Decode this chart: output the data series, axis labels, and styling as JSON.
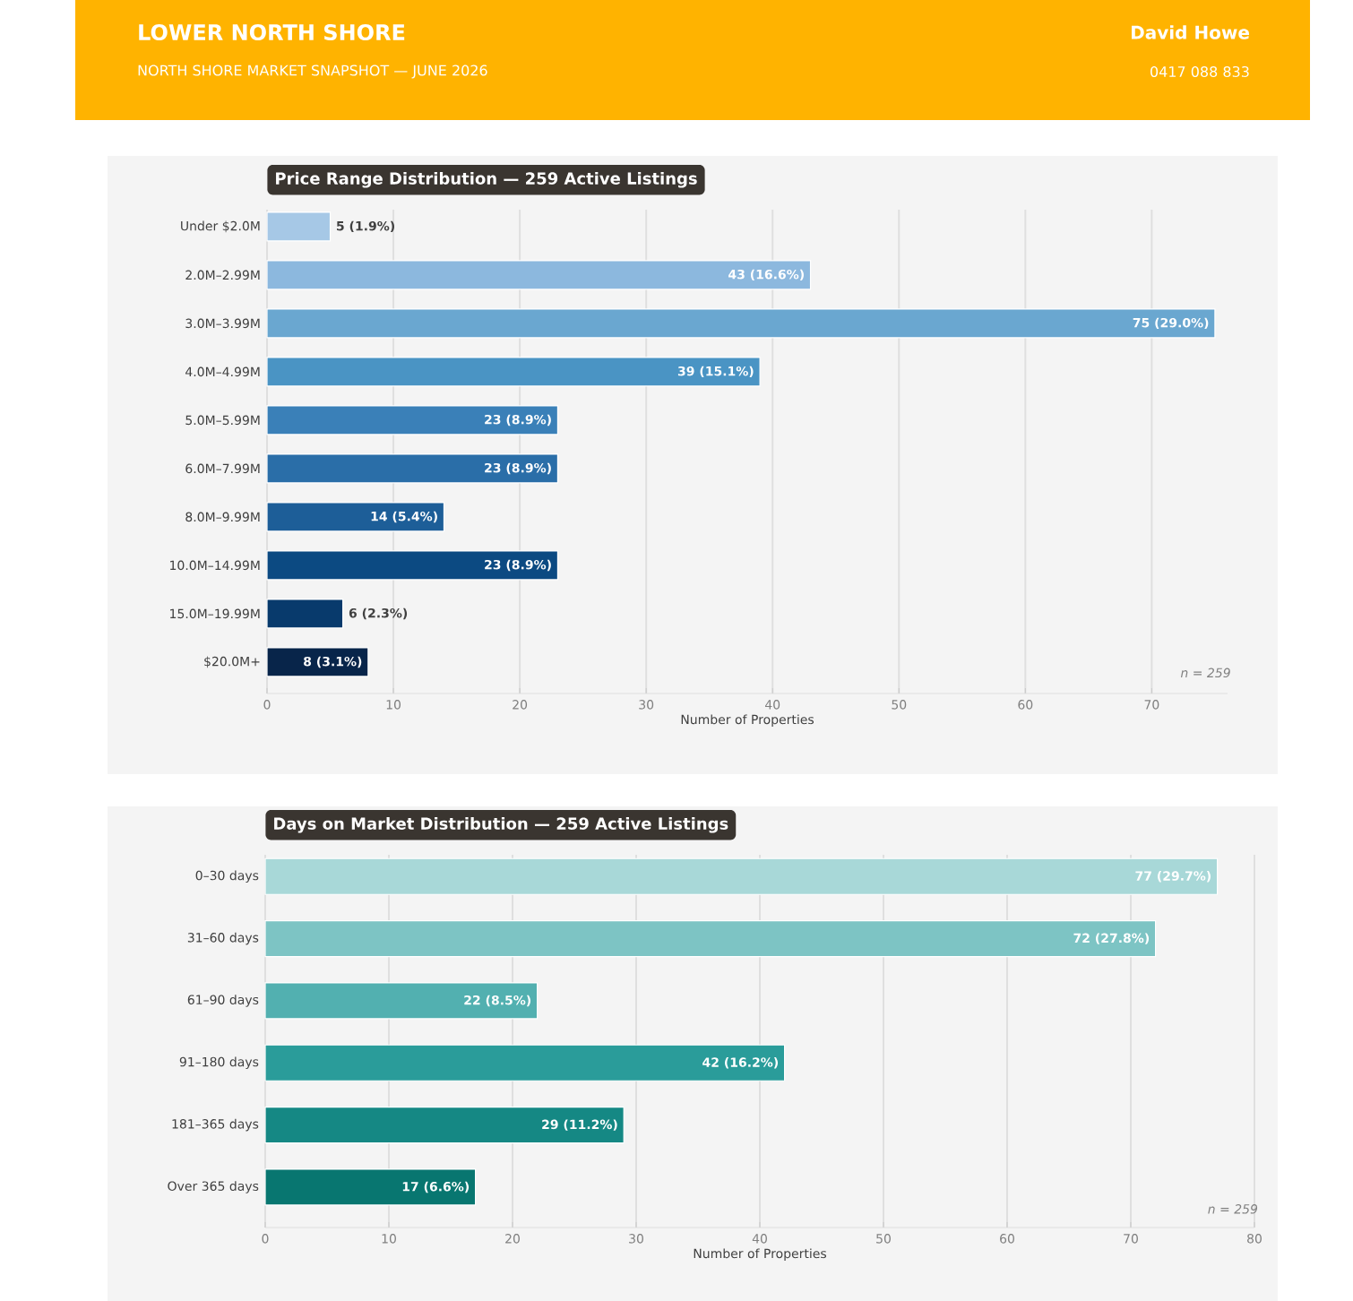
{
  "chart_data": [
    {
      "type": "other",
      "title": "LOWER NORTH SHORE",
      "subtitle": "NORTH SHORE MARKET SNAPSHOT — JUNE 2026",
      "annotations": [
        "David Howe",
        "0417 088 833"
      ]
    },
    {
      "type": "bar",
      "orientation": "horizontal",
      "title": "Price Range Distribution  —  259 Active Listings",
      "xlabel": "Number of Properties",
      "categories": [
        "Under $2.0M",
        "2.0M–2.99M",
        "3.0M–3.99M",
        "4.0M–4.99M",
        "5.0M–5.99M",
        "6.0M–7.99M",
        "8.0M–9.99M",
        "10.0M–14.99M",
        "15.0M–19.99M",
        "$20.0M+"
      ],
      "values": [
        5,
        43,
        75,
        39,
        23,
        23,
        14,
        23,
        6,
        8
      ],
      "value_labels": [
        "5  (1.9%)",
        "43  (16.6%)",
        "75  (29.0%)",
        "39  (15.1%)",
        "23  (8.9%)",
        "23  (8.9%)",
        "14  (5.4%)",
        "23  (8.9%)",
        "6  (2.3%)",
        "8  (3.1%)"
      ],
      "colors": [
        "#a6c8e6",
        "#8cb8de",
        "#6aa7d0",
        "#4a94c4",
        "#3a80b8",
        "#2a6ea8",
        "#1d5e98",
        "#0c4a82",
        "#083a6c",
        "#08254a"
      ],
      "xlim": [
        0,
        76
      ],
      "xticks": [
        0,
        10,
        20,
        30,
        40,
        50,
        60,
        70
      ],
      "grid": "x",
      "annotations": [
        "n = 259"
      ]
    },
    {
      "type": "bar",
      "orientation": "horizontal",
      "title": "Days on Market Distribution  —  259 Active Listings",
      "xlabel": "Number of Properties",
      "categories": [
        "0–30 days",
        "31–60 days",
        "61–90 days",
        "91–180 days",
        "181–365 days",
        "Over 365 days"
      ],
      "values": [
        77,
        72,
        22,
        42,
        29,
        17
      ],
      "value_labels": [
        "77  (29.7%)",
        "72  (27.8%)",
        "22  (8.5%)",
        "42  (16.2%)",
        "29  (11.2%)",
        "17  (6.6%)"
      ],
      "colors": [
        "#a8d8d8",
        "#7dc4c4",
        "#52b0b0",
        "#2a9c9a",
        "#158884",
        "#087670"
      ],
      "xlim": [
        0,
        80
      ],
      "xticks": [
        0,
        10,
        20,
        30,
        40,
        50,
        60,
        70,
        80
      ],
      "grid": "x",
      "annotations": [
        "n = 259"
      ]
    }
  ]
}
